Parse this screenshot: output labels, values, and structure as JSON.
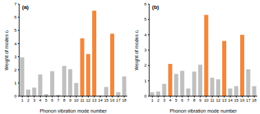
{
  "chart_data": [
    {
      "type": "bar",
      "title": "(a)",
      "categories": [
        "1",
        "2",
        "3",
        "4",
        "5",
        "6",
        "7",
        "8",
        "9",
        "10",
        "11",
        "12",
        "13",
        "14",
        "15",
        "16",
        "17",
        "18"
      ],
      "values": [
        2.95,
        0.5,
        0.65,
        1.65,
        0.15,
        1.9,
        0.1,
        2.3,
        2.05,
        1.0,
        4.4,
        3.2,
        6.5,
        0.05,
        0.7,
        4.75,
        0.3,
        1.5
      ],
      "colors": [
        "#c0c0c0",
        "#c0c0c0",
        "#c0c0c0",
        "#c0c0c0",
        "#c0c0c0",
        "#c0c0c0",
        "#c0c0c0",
        "#c0c0c0",
        "#c0c0c0",
        "#c0c0c0",
        "#f0883e",
        "#f0883e",
        "#f0883e",
        "#c0c0c0",
        "#c0c0c0",
        "#f0883e",
        "#c0c0c0",
        "#c0c0c0"
      ],
      "ylim": [
        0,
        7
      ],
      "yticks": [
        0,
        1,
        2,
        3,
        4,
        5,
        6,
        7
      ],
      "x_label": "Phonon vibration mode number",
      "y_label": "Weight of modes cᵢ"
    },
    {
      "type": "bar",
      "title": "(b)",
      "categories": [
        "1",
        "2",
        "3",
        "4",
        "5",
        "6",
        "7",
        "8",
        "9",
        "10",
        "11",
        "12",
        "13",
        "14",
        "15",
        "16",
        "17",
        "18"
      ],
      "values": [
        0.25,
        0.3,
        0.8,
        2.1,
        1.45,
        1.65,
        0.5,
        1.6,
        2.05,
        5.3,
        1.2,
        1.1,
        3.6,
        0.5,
        0.65,
        4.0,
        1.75,
        0.65
      ],
      "colors": [
        "#c0c0c0",
        "#c0c0c0",
        "#c0c0c0",
        "#f0883e",
        "#c0c0c0",
        "#c0c0c0",
        "#c0c0c0",
        "#c0c0c0",
        "#c0c0c0",
        "#f0883e",
        "#c0c0c0",
        "#c0c0c0",
        "#f0883e",
        "#c0c0c0",
        "#c0c0c0",
        "#f0883e",
        "#c0c0c0",
        "#c0c0c0"
      ],
      "ylim": [
        0,
        6
      ],
      "yticks": [
        0,
        1,
        2,
        3,
        4,
        5,
        6
      ],
      "x_label": "Phonon vibration mode number",
      "y_label": "Weight of modes cᵢ"
    }
  ]
}
